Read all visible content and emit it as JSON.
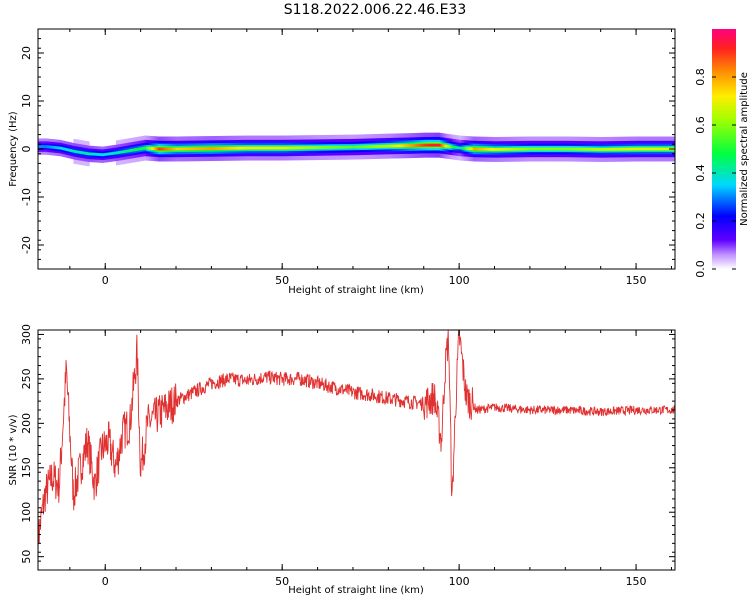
{
  "title": "S118.2022.006.22.46.E33",
  "chart_data": [
    {
      "type": "heatmap",
      "xlabel": "Height of straight line (km)",
      "ylabel": "Frequency (Hz)",
      "xlim": [
        -19,
        161
      ],
      "ylim": [
        -25,
        25
      ],
      "x_ticks": [
        0,
        50,
        100,
        150
      ],
      "y_ticks": [
        -20,
        -10,
        0,
        10,
        20
      ],
      "colorbar": {
        "label": "Normalized spectral amplitude",
        "range": [
          0,
          1
        ],
        "ticks": [
          0.0,
          0.2,
          0.4,
          0.6,
          0.8
        ]
      },
      "ridge": {
        "x": [
          -17,
          -13,
          -9,
          -5,
          -1,
          3,
          7,
          11,
          15,
          20,
          30,
          40,
          50,
          60,
          70,
          80,
          86,
          90,
          94,
          96,
          98,
          100,
          104,
          110,
          120,
          130,
          140,
          150,
          160
        ],
        "freq": [
          0.5,
          0.2,
          -0.5,
          -1.0,
          -1.2,
          -0.8,
          -0.3,
          0.2,
          0.0,
          0.0,
          0.1,
          0.2,
          0.2,
          0.3,
          0.4,
          0.6,
          0.7,
          0.8,
          0.8,
          0.6,
          0.4,
          0.2,
          0.0,
          -0.1,
          0.0,
          0.0,
          -0.1,
          0.0,
          0.0
        ],
        "amplitude": [
          0.3,
          0.35,
          0.4,
          0.4,
          0.35,
          0.4,
          0.45,
          0.5,
          0.9,
          0.75,
          0.8,
          0.7,
          0.7,
          0.6,
          0.55,
          0.65,
          0.8,
          0.9,
          0.95,
          0.7,
          0.5,
          0.4,
          0.8,
          0.7,
          0.6,
          0.6,
          0.65,
          0.7,
          0.7
        ]
      }
    },
    {
      "type": "line",
      "xlabel": "Height of straight line (km)",
      "ylabel": "SNR (10 * v/v)",
      "xlim": [
        -19,
        161
      ],
      "ylim": [
        35,
        305
      ],
      "x_ticks": [
        0,
        50,
        100,
        150
      ],
      "y_ticks": [
        50,
        100,
        150,
        200,
        250,
        300
      ],
      "color": "#e03030",
      "series": [
        {
          "x": [
            -19,
            -17,
            -15,
            -13,
            -11,
            -9,
            -7,
            -5,
            -3,
            -1,
            1,
            3,
            5,
            7,
            9,
            10,
            12,
            15,
            20,
            25,
            30,
            35,
            40,
            45,
            50,
            55,
            60,
            65,
            70,
            75,
            80,
            85,
            90,
            93,
            95,
            96,
            97,
            98,
            99,
            100,
            102,
            105,
            110,
            120,
            130,
            140,
            150,
            160
          ],
          "y": [
            70,
            120,
            140,
            130,
            260,
            120,
            150,
            180,
            130,
            170,
            180,
            150,
            190,
            200,
            280,
            150,
            200,
            210,
            225,
            235,
            245,
            250,
            248,
            252,
            250,
            250,
            245,
            240,
            235,
            232,
            228,
            225,
            222,
            230,
            180,
            260,
            300,
            110,
            220,
            300,
            230,
            215,
            218,
            215,
            215,
            213,
            215,
            215
          ]
        }
      ]
    }
  ],
  "axes_text": {
    "top_xlabel": "Height of straight line (km)",
    "top_ylabel": "Frequency (Hz)",
    "bottom_xlabel": "Height of straight line (km)",
    "bottom_ylabel": "SNR (10 * v/v)",
    "colorbar_label": "Normalized spectral amplitude"
  }
}
